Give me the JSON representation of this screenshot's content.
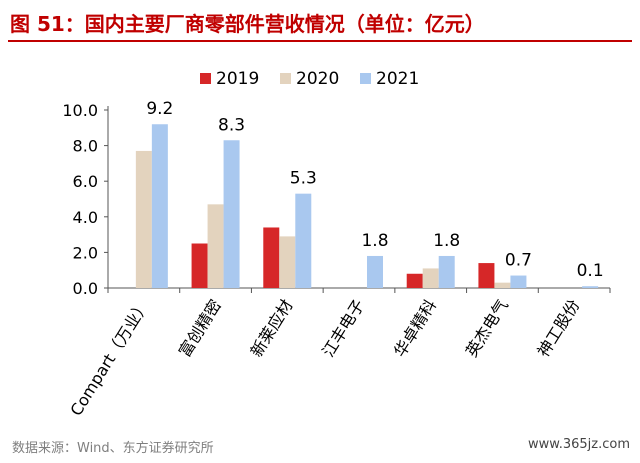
{
  "header": {
    "title": "图 51：国内主要厂商零部件营收情况（单位：亿元）"
  },
  "footer": {
    "source": "数据来源：Wind、东方证券研究所",
    "watermark": "www.365jz.com"
  },
  "chart_data": {
    "type": "bar",
    "title": "",
    "xlabel": "",
    "ylabel": "",
    "categories": [
      "Compart（万业）",
      "富创精密",
      "新莱应材",
      "江丰电子",
      "华卓精科",
      "英杰电气",
      "神工股份"
    ],
    "series": [
      {
        "name": "2019",
        "color": "#d62728",
        "values": [
          0,
          2.5,
          3.4,
          0,
          0.8,
          1.4,
          0
        ]
      },
      {
        "name": "2020",
        "color": "#e3d3be",
        "values": [
          7.7,
          4.7,
          2.9,
          0,
          1.1,
          0.3,
          0
        ]
      },
      {
        "name": "2021",
        "color": "#a9c8ef",
        "values": [
          9.2,
          8.3,
          5.3,
          1.8,
          1.8,
          0.7,
          0.1
        ]
      }
    ],
    "data_labels": [
      "9.2",
      "8.3",
      "5.3",
      "1.8",
      "1.8",
      "0.7",
      "0.1"
    ],
    "ylim": [
      0,
      10
    ],
    "yticks": [
      "0.0",
      "2.0",
      "4.0",
      "6.0",
      "8.0",
      "10.0"
    ],
    "legend_position": "top-center",
    "grid": false
  }
}
